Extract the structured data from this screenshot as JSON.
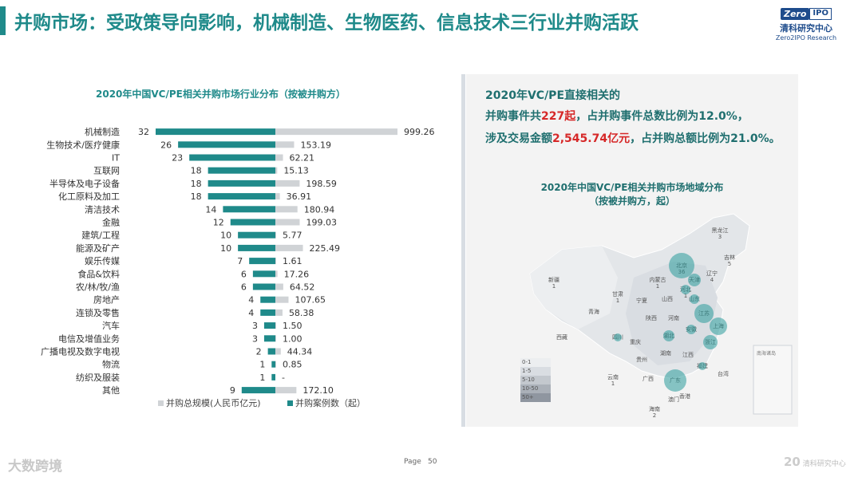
{
  "page": {
    "title": "并购市场：受政策导向影响，机械制造、生物医药、信息技术三行业并购活跃",
    "page_label": "Page",
    "page_number": "50"
  },
  "logo": {
    "zero": "Zero",
    "ipo": "IPO",
    "name_cn": "清科研究中心",
    "name_en": "Zero2IPO Research"
  },
  "chart_data": {
    "type": "bar",
    "title": "2020年中国VC/PE相关并购市场行业分布（按被并购方）",
    "categories": [
      "机械制造",
      "生物技术/医疗健康",
      "IT",
      "互联网",
      "半导体及电子设备",
      "化工原料及加工",
      "清洁技术",
      "金融",
      "建筑/工程",
      "能源及矿产",
      "娱乐传媒",
      "食品&饮料",
      "农/林/牧/渔",
      "房地产",
      "连锁及零售",
      "汽车",
      "电信及增值业务",
      "广播电视及数字电视",
      "物流",
      "纺织及服装",
      "其他"
    ],
    "series": [
      {
        "name": "并购总规模(人民币亿元)",
        "color": "#d0d3d6",
        "values": [
          999.26,
          153.19,
          62.21,
          15.13,
          198.59,
          36.91,
          180.94,
          199.03,
          5.77,
          225.49,
          1.61,
          17.26,
          64.52,
          107.65,
          58.38,
          1.5,
          1.0,
          44.34,
          0.85,
          null,
          172.1
        ],
        "labels": [
          "999.26",
          "153.19",
          "62.21",
          "15.13",
          "198.59",
          "36.91",
          "180.94",
          "199.03",
          "5.77",
          "225.49",
          "1.61",
          "17.26",
          "64.52",
          "107.65",
          "58.38",
          "1.50",
          "1.00",
          "44.34",
          "0.85",
          "-",
          "172.10"
        ]
      },
      {
        "name": "并购案例数（起）",
        "color": "#1f8a8a",
        "values": [
          32,
          26,
          23,
          18,
          18,
          18,
          14,
          12,
          10,
          10,
          7,
          6,
          6,
          4,
          4,
          3,
          3,
          2,
          1,
          1,
          9
        ]
      }
    ],
    "legend": "bottom"
  },
  "summary": {
    "line1": "2020年VC/PE直接相关的",
    "line2_a": "并购事件共",
    "line2_b": "227起",
    "line2_c": "，占并购事件总数比例为12.0%，",
    "line3_a": "涉及交易金额",
    "line3_b": "2,545.74亿元",
    "line3_c": "，占并购总额比例为21.0%。"
  },
  "map": {
    "title1": "2020年中国VC/PE相关并购市场地域分布",
    "title2": "（按被并购方，起）",
    "legend": [
      "0-1",
      "1-5",
      "5-10",
      "10-50",
      "50+"
    ],
    "legend_colors": [
      "#eceef0",
      "#d9dde2",
      "#c3c8ce",
      "#aab0b8",
      "#8f96a0"
    ],
    "inset_label": "南海诸岛",
    "regions": [
      {
        "name": "黑龙江",
        "value": "3"
      },
      {
        "name": "吉林",
        "value": "5"
      },
      {
        "name": "辽宁",
        "value": "4"
      },
      {
        "name": "北京",
        "value": "36"
      },
      {
        "name": "天津",
        "value": ""
      },
      {
        "name": "内蒙古",
        "value": "1"
      },
      {
        "name": "河北",
        "value": "1"
      },
      {
        "name": "山西",
        "value": ""
      },
      {
        "name": "山东",
        "value": ""
      },
      {
        "name": "新疆",
        "value": "1"
      },
      {
        "name": "甘肃",
        "value": "1"
      },
      {
        "name": "宁夏",
        "value": ""
      },
      {
        "name": "青海",
        "value": ""
      },
      {
        "name": "陕西",
        "value": ""
      },
      {
        "name": "河南",
        "value": ""
      },
      {
        "name": "江苏",
        "value": ""
      },
      {
        "name": "上海",
        "value": ""
      },
      {
        "name": "安徽",
        "value": ""
      },
      {
        "name": "西藏",
        "value": ""
      },
      {
        "name": "四川",
        "value": ""
      },
      {
        "name": "重庆",
        "value": ""
      },
      {
        "name": "湖北",
        "value": ""
      },
      {
        "name": "浙江",
        "value": ""
      },
      {
        "name": "湖南",
        "value": ""
      },
      {
        "name": "江西",
        "value": ""
      },
      {
        "name": "贵州",
        "value": ""
      },
      {
        "name": "福建",
        "value": ""
      },
      {
        "name": "云南",
        "value": "1"
      },
      {
        "name": "广西",
        "value": ""
      },
      {
        "name": "广东",
        "value": ""
      },
      {
        "name": "台湾",
        "value": ""
      },
      {
        "name": "香港",
        "value": ""
      },
      {
        "name": "澳门",
        "value": ""
      },
      {
        "name": "海南",
        "value": "2"
      }
    ]
  },
  "watermarks": {
    "left": "大数跨境",
    "right_big": "20",
    "right_small": "清科研究中心"
  }
}
